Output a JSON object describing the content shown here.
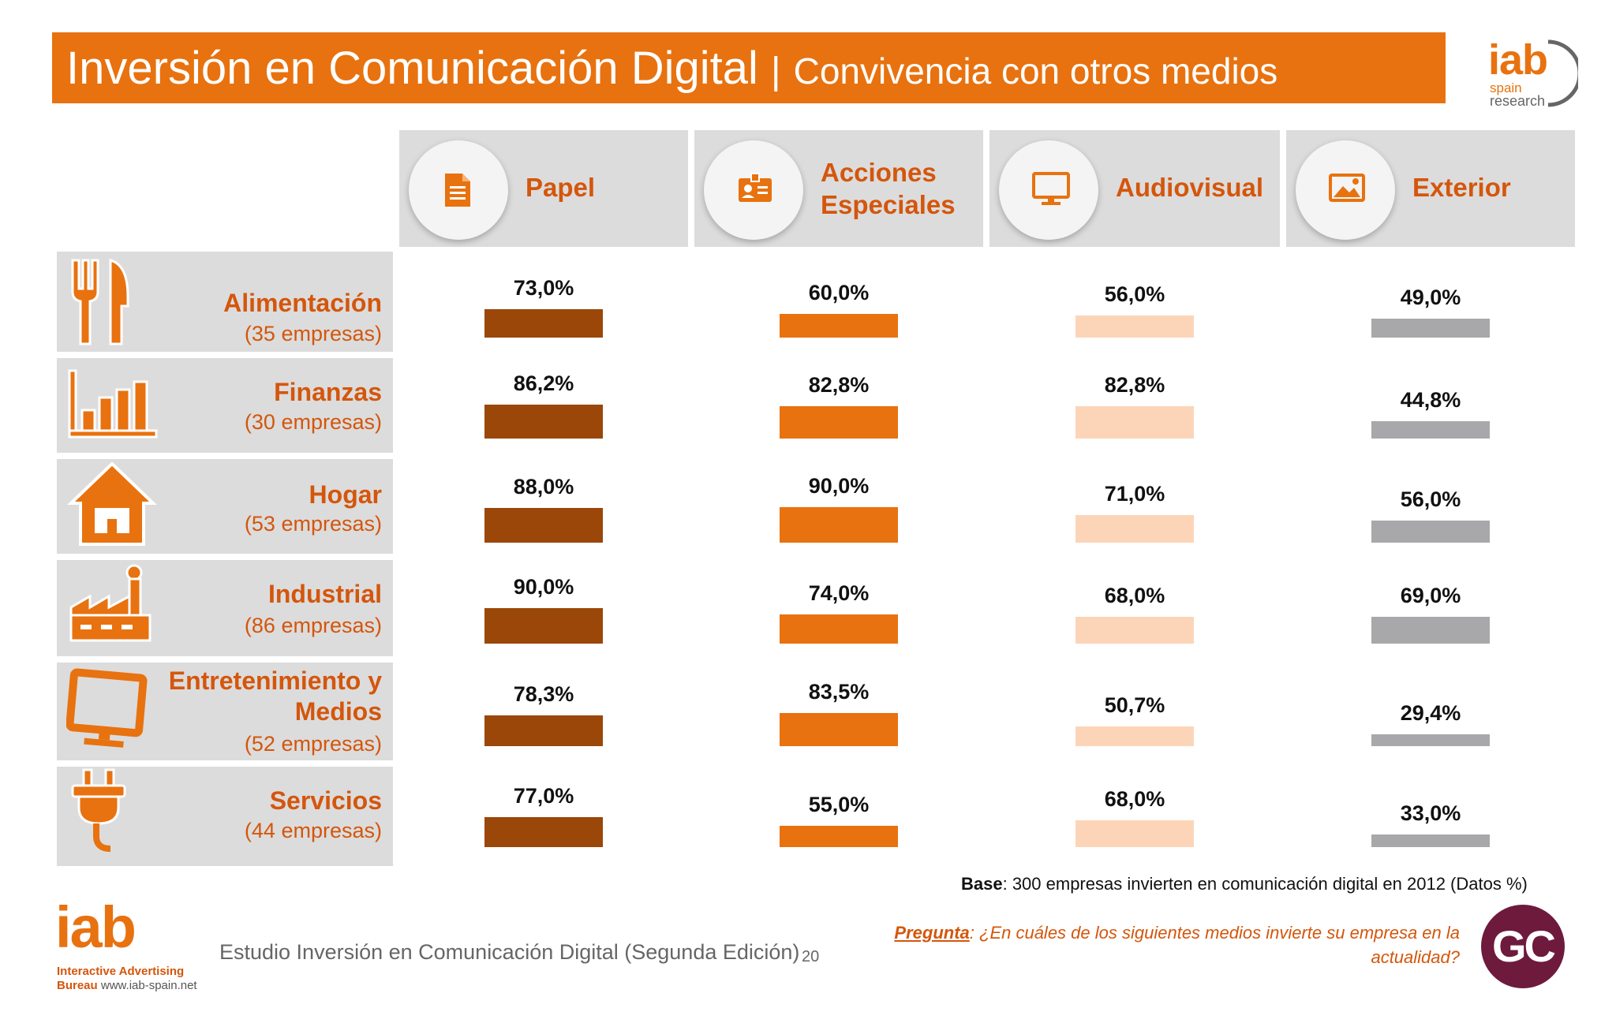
{
  "header": {
    "title_main": "Inversión en Comunicación Digital",
    "title_sep": "|",
    "title_sub": "Convivencia con otros medios"
  },
  "logo_top": {
    "iab": "iab",
    "spain": "spain",
    "research": "research"
  },
  "columns": [
    {
      "label_line1": "Papel",
      "label_line2": "",
      "icon": "document-icon",
      "color": "#9a4709"
    },
    {
      "label_line1": "Acciones",
      "label_line2": "Especiales",
      "icon": "id-badge-icon",
      "color": "#e8720f"
    },
    {
      "label_line1": "Audiovisual",
      "label_line2": "",
      "icon": "monitor-icon",
      "color": "#fcd5b8"
    },
    {
      "label_line1": "Exterior",
      "label_line2": "",
      "icon": "image-icon",
      "color": "#a8a8aa"
    }
  ],
  "rows": [
    {
      "name_line1": "Alimentación",
      "name_line2": "",
      "count": "(35 empresas)",
      "icon": "fork-knife-icon"
    },
    {
      "name_line1": "Finanzas",
      "name_line2": "",
      "count": "(30 empresas)",
      "icon": "bar-chart-icon"
    },
    {
      "name_line1": "Hogar",
      "name_line2": "",
      "count": "(53 empresas)",
      "icon": "house-icon"
    },
    {
      "name_line1": "Industrial",
      "name_line2": "",
      "count": "(86 empresas)",
      "icon": "factory-icon"
    },
    {
      "name_line1": "Entretenimiento y",
      "name_line2": "Medios",
      "count": "(52 empresas)",
      "icon": "tv-icon"
    },
    {
      "name_line1": "Servicios",
      "name_line2": "",
      "count": "(44 empresas)",
      "icon": "plug-icon"
    }
  ],
  "chart_data": {
    "type": "bar",
    "categories": [
      "Alimentación",
      "Finanzas",
      "Hogar",
      "Industrial",
      "Entretenimiento y Medios",
      "Servicios"
    ],
    "series": [
      {
        "name": "Papel",
        "values": [
          73.0,
          86.2,
          88.0,
          90.0,
          78.3,
          77.0
        ],
        "labels": [
          "73,0%",
          "86,2%",
          "88,0%",
          "90,0%",
          "78,3%",
          "77,0%"
        ]
      },
      {
        "name": "Acciones Especiales",
        "values": [
          60.0,
          82.8,
          90.0,
          74.0,
          83.5,
          55.0
        ],
        "labels": [
          "60,0%",
          "82,8%",
          "90,0%",
          "74,0%",
          "83,5%",
          "55,0%"
        ]
      },
      {
        "name": "Audiovisual",
        "values": [
          56.0,
          82.8,
          71.0,
          68.0,
          50.7,
          68.0
        ],
        "labels": [
          "56,0%",
          "82,8%",
          "71,0%",
          "68,0%",
          "50,7%",
          "68,0%"
        ]
      },
      {
        "name": "Exterior",
        "values": [
          49.0,
          44.8,
          56.0,
          69.0,
          29.4,
          33.0
        ],
        "labels": [
          "49,0%",
          "44,8%",
          "56,0%",
          "69,0%",
          "29,4%",
          "33,0%"
        ]
      }
    ],
    "ylim": [
      0,
      100
    ]
  },
  "footer": {
    "base_label": "Base",
    "base_text": ": 300 empresas invierten en comunicación digital en 2012 (Datos %)",
    "question_label": "Pregunta",
    "question_text": ": ¿En cuáles de los siguientes medios invierte su empresa en la actualidad?",
    "study": "Estudio Inversión en Comunicación Digital (Segunda Edición)",
    "page_number": "20",
    "gc_badge": "GC",
    "logo_iab": "iab",
    "logo_line1": "Interactive Advertising",
    "logo_line2_a": "Bureau",
    "logo_line2_b": " www.iab-spain.net"
  }
}
